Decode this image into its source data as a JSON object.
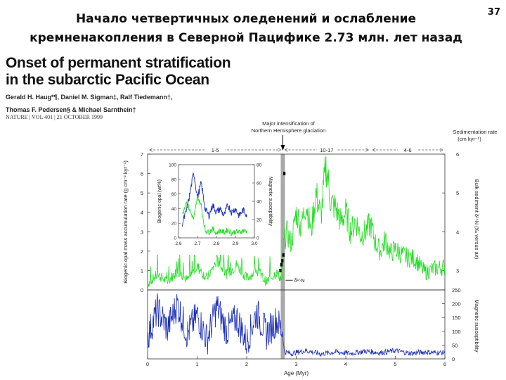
{
  "slide": {
    "title_line1": "Начало четвертичных оледенений и ослабление",
    "title_line2": "кремненакопления в Северной Пацифике 2.73 млн. лет назад",
    "page_number": "37"
  },
  "paper": {
    "title_line1": "Onset of permanent stratification",
    "title_line2": "in the subarctic Pacific Ocean",
    "authors_line1": "Gerald H. Haug*¶, Daniel M. Sigman‡, Ralf Tiedemann†,",
    "authors_line2": "Thomas F. Pedersen§ & Michael Sarnthein†",
    "journal": "NATURE | VOL 401 | 21 OCTOBER 1999"
  },
  "colors": {
    "opal": "#22dd22",
    "magsus": "#1a2db8",
    "band": "#9a9a9a",
    "axis": "#333333"
  },
  "chart_data": [
    {
      "type": "line",
      "name": "main",
      "xlabel": "Age (Myr)",
      "xlim": [
        0,
        6
      ],
      "x_ticks": [
        "0",
        "1",
        "2",
        "3",
        "4",
        "5",
        "6"
      ],
      "top_annotation_line1": "Major intensification of",
      "top_annotation_line2": "Northern Hemisphere glaciation",
      "annotation_x": 2.73,
      "rate_label_line1": "Sedimentation rate",
      "rate_label_line2": "(cm kyr⁻¹)",
      "rate_segments": [
        {
          "label": "1-5",
          "from": 0,
          "to": 2.73
        },
        {
          "label": "10-17",
          "from": 2.73,
          "to": 4.5
        },
        {
          "label": "4-6",
          "from": 4.5,
          "to": 6
        }
      ],
      "left_ylabel": "Biogenic opal mass accumulation rate (g cm⁻² kyr⁻¹)",
      "left_ylim": [
        0,
        7
      ],
      "left_ticks": [
        "0",
        "1",
        "2",
        "3",
        "4",
        "5",
        "6",
        "7"
      ],
      "right_upper_ylabel": "Bulk sediment δ¹⁵N (‰ versus air)",
      "right_upper_ticks": [
        "3",
        "4",
        "5",
        "6"
      ],
      "right_lower_ylabel": "Magnetic susceptibility",
      "right_lower_ylim": [
        0,
        250
      ],
      "right_lower_ticks": [
        "0",
        "50",
        "100",
        "150",
        "200",
        "250"
      ],
      "d15n_label": "δ¹⁵N",
      "series": [
        {
          "name": "Biogenic opal MAR",
          "x": [
            0.0,
            0.2,
            0.4,
            0.6,
            0.8,
            1.0,
            1.2,
            1.4,
            1.6,
            1.8,
            2.0,
            2.2,
            2.4,
            2.6,
            2.72,
            2.74,
            2.8,
            2.9,
            3.0,
            3.1,
            3.2,
            3.3,
            3.4,
            3.5,
            3.6,
            3.7,
            3.8,
            3.9,
            4.0,
            4.1,
            4.2,
            4.3,
            4.4,
            4.5,
            4.6,
            4.7,
            4.8,
            4.9,
            5.0,
            5.2,
            5.4,
            5.6,
            5.8,
            6.0
          ],
          "y": [
            0.3,
            0.8,
            0.4,
            1.0,
            0.5,
            1.2,
            0.6,
            1.5,
            0.8,
            1.3,
            0.6,
            1.0,
            0.4,
            0.9,
            0.5,
            2.2,
            3.0,
            2.4,
            4.0,
            3.2,
            4.5,
            3.0,
            5.0,
            3.8,
            6.5,
            4.5,
            4.2,
            3.5,
            4.0,
            3.0,
            3.6,
            2.8,
            3.0,
            3.4,
            2.4,
            2.0,
            2.6,
            1.9,
            2.1,
            1.7,
            1.6,
            0.9,
            1.1,
            1.2
          ]
        },
        {
          "name": "Magnetic susceptibility",
          "x": [
            0.0,
            0.2,
            0.4,
            0.6,
            0.8,
            1.0,
            1.2,
            1.4,
            1.6,
            1.8,
            2.0,
            2.2,
            2.4,
            2.6,
            2.72,
            2.76,
            2.9,
            3.2,
            3.5,
            3.8,
            4.1,
            4.4,
            4.7,
            5.0,
            5.3,
            5.6,
            5.9,
            6.0
          ],
          "y": [
            80,
            180,
            110,
            200,
            90,
            160,
            70,
            190,
            100,
            150,
            60,
            170,
            90,
            140,
            100,
            25,
            20,
            30,
            18,
            25,
            20,
            28,
            22,
            30,
            20,
            25,
            22,
            24
          ]
        }
      ],
      "d15n_points": [
        {
          "x": 2.68,
          "y": 1.0
        },
        {
          "x": 2.7,
          "y": 1.3
        },
        {
          "x": 2.72,
          "y": 1.5
        },
        {
          "x": 2.74,
          "y": 1.8
        },
        {
          "x": 2.76,
          "y": 6.0
        }
      ]
    },
    {
      "type": "line",
      "name": "inset",
      "xlim": [
        2.6,
        3.0
      ],
      "x_ticks": [
        "2.6",
        "2.7",
        "2.8",
        "2.9",
        "3.0"
      ],
      "left_ylabel": "Biogenic opal (wt%)",
      "left_ticks": [
        "0",
        "20",
        "40",
        "60",
        "80",
        "100"
      ],
      "right_ylabel": "Magnetic susceptibility",
      "right_ticks": [
        "0",
        "20",
        "40",
        "60",
        "80"
      ],
      "series": [
        {
          "name": "Biogenic opal (wt%)",
          "x": [
            2.62,
            2.64,
            2.66,
            2.68,
            2.7,
            2.72,
            2.74,
            2.76,
            2.78,
            2.8,
            2.82,
            2.84,
            2.86,
            2.88,
            2.9,
            2.92,
            2.94,
            2.96
          ],
          "y": [
            20,
            35,
            60,
            90,
            55,
            75,
            40,
            30,
            45,
            35,
            40,
            30,
            45,
            35,
            40,
            30,
            38,
            32
          ]
        },
        {
          "name": "Magnetic susceptibility",
          "x": [
            2.62,
            2.64,
            2.66,
            2.68,
            2.7,
            2.72,
            2.74,
            2.76,
            2.78,
            2.8,
            2.82,
            2.84,
            2.86,
            2.88,
            2.9,
            2.92,
            2.94,
            2.96
          ],
          "y": [
            25,
            40,
            30,
            20,
            45,
            35,
            8,
            6,
            10,
            5,
            8,
            6,
            9,
            5,
            7,
            6,
            8,
            7
          ]
        }
      ]
    }
  ]
}
